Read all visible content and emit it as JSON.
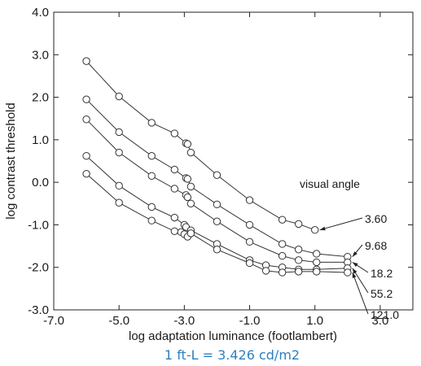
{
  "chart_data": {
    "type": "line",
    "xlabel": "log adaptation luminance (footlambert)",
    "ylabel": "log contrast threshold",
    "xlim": [
      -7.0,
      4.0
    ],
    "ylim": [
      -3.0,
      4.0
    ],
    "xticks": [
      -7.0,
      -5.0,
      -3.0,
      -1.0,
      1.0,
      3.0
    ],
    "xtick_labels": [
      "-7.0",
      "-5.0",
      "-3.0",
      "-1.0",
      "1.0",
      "3.0"
    ],
    "yticks": [
      -3.0,
      -2.0,
      -1.0,
      0.0,
      1.0,
      2.0,
      3.0,
      4.0
    ],
    "ytick_labels": [
      "-3.0",
      "-2.0",
      "-1.0",
      "0.0",
      "1.0",
      "2.0",
      "3.0",
      "4.0"
    ],
    "grid": false,
    "legend_title": "visual angle",
    "series": [
      {
        "name": "3.60",
        "x": [
          -6.0,
          -5.0,
          -4.0,
          -3.3,
          -2.95,
          -2.9,
          -2.8,
          -2.0,
          -1.0,
          0.0,
          0.5,
          1.0
        ],
        "y": [
          2.85,
          2.02,
          1.4,
          1.15,
          0.92,
          0.9,
          0.7,
          0.17,
          -0.42,
          -0.88,
          -0.98,
          -1.12
        ]
      },
      {
        "name": "9.68",
        "x": [
          -6.0,
          -5.0,
          -4.0,
          -3.3,
          -2.95,
          -2.9,
          -2.8,
          -2.0,
          -1.0,
          0.0,
          0.5,
          1.05,
          2.0
        ],
        "y": [
          1.95,
          1.18,
          0.62,
          0.3,
          0.1,
          0.08,
          -0.1,
          -0.52,
          -1.0,
          -1.45,
          -1.58,
          -1.68,
          -1.75
        ]
      },
      {
        "name": "18.2",
        "x": [
          -6.0,
          -5.0,
          -4.0,
          -3.3,
          -2.95,
          -2.9,
          -2.8,
          -2.0,
          -1.0,
          0.0,
          0.5,
          1.05,
          2.0
        ],
        "y": [
          1.48,
          0.7,
          0.15,
          -0.15,
          -0.3,
          -0.35,
          -0.5,
          -0.92,
          -1.4,
          -1.73,
          -1.83,
          -1.88,
          -1.88
        ]
      },
      {
        "name": "55.2",
        "x": [
          -6.0,
          -5.0,
          -4.0,
          -3.3,
          -3.0,
          -2.95,
          -2.8,
          -2.0,
          -1.0,
          -0.5,
          0.0,
          0.5,
          1.05,
          2.0
        ],
        "y": [
          0.62,
          -0.08,
          -0.58,
          -0.83,
          -1.0,
          -1.05,
          -1.13,
          -1.45,
          -1.83,
          -1.95,
          -2.0,
          -2.05,
          -2.05,
          -2.02
        ]
      },
      {
        "name": "121.0",
        "x": [
          -6.0,
          -5.0,
          -4.0,
          -3.3,
          -3.1,
          -3.0,
          -2.9,
          -2.8,
          -2.0,
          -1.0,
          -0.5,
          0.0,
          0.5,
          1.05,
          2.0
        ],
        "y": [
          0.2,
          -0.48,
          -0.9,
          -1.15,
          -1.17,
          -1.22,
          -1.28,
          -1.2,
          -1.58,
          -1.9,
          -2.08,
          -2.12,
          -2.1,
          -2.1,
          -2.12
        ]
      }
    ]
  },
  "caption": "1 ft-L = 3.426 cd/m2"
}
